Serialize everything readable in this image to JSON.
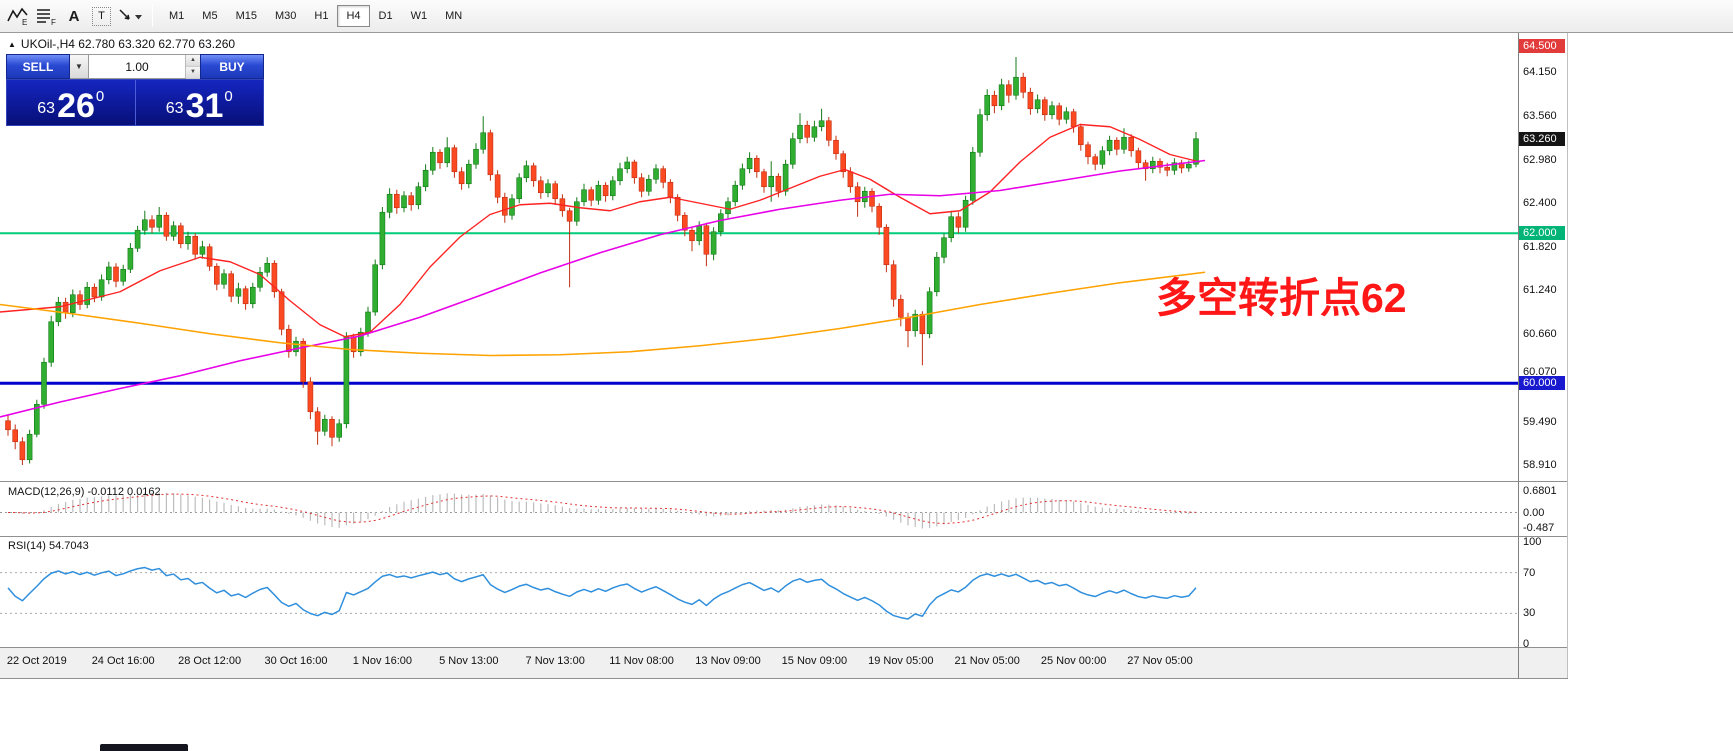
{
  "toolbar": {
    "tools": [
      {
        "id": "chart-template-e",
        "label": "E"
      },
      {
        "id": "chart-template-f",
        "label": "F"
      },
      {
        "id": "text-label-tool",
        "label": "A"
      },
      {
        "id": "text-box-tool",
        "label": "T"
      },
      {
        "id": "drawing-tools",
        "label": ""
      }
    ],
    "timeframes": [
      "M1",
      "M5",
      "M15",
      "M30",
      "H1",
      "H4",
      "D1",
      "W1",
      "MN"
    ],
    "active_timeframe": "H4"
  },
  "symbol_info": {
    "collapse_icon": "▲",
    "text": "UKOil-,H4  62.780 63.320 62.770 63.260"
  },
  "trade_panel": {
    "sell_label": "SELL",
    "buy_label": "BUY",
    "volume": "1.00",
    "bid": {
      "small": "63",
      "big": "26",
      "sup": "0"
    },
    "ask": {
      "small": "63",
      "big": "31",
      "sup": "0"
    }
  },
  "annotation": {
    "text": "多空转折点62",
    "color": "#ff1616"
  },
  "price_axis": {
    "ticks": [
      {
        "label": "64.500",
        "price": 64.5,
        "badge": "red"
      },
      {
        "label": "64.150",
        "price": 64.15
      },
      {
        "label": "63.560",
        "price": 63.56
      },
      {
        "label": "63.260",
        "price": 63.26,
        "badge": "black"
      },
      {
        "label": "62.980",
        "price": 62.98
      },
      {
        "label": "62.400",
        "price": 62.4
      },
      {
        "label": "62.000",
        "price": 62.0,
        "badge": "green"
      },
      {
        "label": "61.820",
        "price": 61.82
      },
      {
        "label": "61.240",
        "price": 61.24
      },
      {
        "label": "60.660",
        "price": 60.66
      },
      {
        "label": "60.070",
        "price": 60.07,
        "dy": -6
      },
      {
        "label": "60.000",
        "price": 60.0,
        "badge": "blue"
      },
      {
        "label": "59.490",
        "price": 59.49
      },
      {
        "label": "58.910",
        "price": 58.91
      }
    ]
  },
  "macd_panel": {
    "label": "MACD(12,26,9) -0.0112 0.0162",
    "axis": [
      {
        "label": "0.6801",
        "value": 0.6801
      },
      {
        "label": "0.00",
        "value": 0
      },
      {
        "label": "-0.487",
        "value": -0.487
      }
    ]
  },
  "rsi_panel": {
    "label": "RSI(14) 54.7043",
    "axis": [
      {
        "label": "100",
        "value": 100
      },
      {
        "label": "70",
        "value": 70
      },
      {
        "label": "30",
        "value": 30
      },
      {
        "label": "0",
        "value": 0
      }
    ],
    "levels": [
      70,
      30
    ]
  },
  "time_axis": [
    {
      "label": "22 Oct 2019",
      "ci": 4
    },
    {
      "label": "24 Oct 16:00",
      "ci": 16
    },
    {
      "label": "28 Oct 12:00",
      "ci": 28
    },
    {
      "label": "30 Oct 16:00",
      "ci": 40
    },
    {
      "label": "1 Nov 16:00",
      "ci": 52
    },
    {
      "label": "5 Nov 13:00",
      "ci": 64
    },
    {
      "label": "7 Nov 13:00",
      "ci": 76
    },
    {
      "label": "11 Nov 08:00",
      "ci": 88
    },
    {
      "label": "13 Nov 09:00",
      "ci": 100
    },
    {
      "label": "15 Nov 09:00",
      "ci": 112
    },
    {
      "label": "19 Nov 05:00",
      "ci": 124
    },
    {
      "label": "21 Nov 05:00",
      "ci": 136
    },
    {
      "label": "25 Nov 00:00",
      "ci": 148
    },
    {
      "label": "27 Nov 05:00",
      "ci": 160
    }
  ],
  "chart_data": {
    "type": "candlestick",
    "symbol": "UKOil-",
    "timeframe": "H4",
    "ylim": [
      58.75,
      64.62
    ],
    "open_first": 59.5,
    "candles": [
      [
        59.58,
        59.3,
        59.38
      ],
      [
        59.45,
        59.12,
        59.22
      ],
      [
        59.28,
        58.91,
        58.98
      ],
      [
        59.38,
        58.93,
        59.32
      ],
      [
        59.78,
        59.28,
        59.72
      ],
      [
        60.34,
        59.66,
        60.28
      ],
      [
        60.9,
        60.22,
        60.82
      ],
      [
        61.15,
        60.76,
        61.08
      ],
      [
        61.14,
        60.86,
        60.94
      ],
      [
        61.25,
        60.88,
        61.18
      ],
      [
        61.24,
        60.98,
        61.05
      ],
      [
        61.35,
        61.0,
        61.28
      ],
      [
        61.33,
        61.08,
        61.15
      ],
      [
        61.45,
        61.1,
        61.38
      ],
      [
        61.62,
        61.32,
        61.55
      ],
      [
        61.6,
        61.28,
        61.36
      ],
      [
        61.58,
        61.3,
        61.52
      ],
      [
        61.87,
        61.47,
        61.8
      ],
      [
        62.1,
        61.75,
        62.04
      ],
      [
        62.3,
        61.98,
        62.18
      ],
      [
        62.24,
        62.0,
        62.08
      ],
      [
        62.35,
        62.02,
        62.24
      ],
      [
        62.28,
        61.9,
        61.96
      ],
      [
        62.16,
        61.9,
        62.1
      ],
      [
        62.14,
        61.8,
        61.86
      ],
      [
        62.02,
        61.78,
        61.96
      ],
      [
        62.0,
        61.65,
        61.72
      ],
      [
        61.9,
        61.66,
        61.82
      ],
      [
        61.86,
        61.5,
        61.56
      ],
      [
        61.6,
        61.24,
        61.32
      ],
      [
        61.52,
        61.26,
        61.46
      ],
      [
        61.5,
        61.08,
        61.16
      ],
      [
        61.34,
        61.06,
        61.26
      ],
      [
        61.3,
        60.98,
        61.06
      ],
      [
        61.34,
        61.0,
        61.28
      ],
      [
        61.55,
        61.22,
        61.48
      ],
      [
        61.68,
        61.42,
        61.6
      ],
      [
        61.64,
        61.14,
        61.22
      ],
      [
        61.26,
        60.64,
        60.72
      ],
      [
        60.78,
        60.34,
        60.42
      ],
      [
        60.62,
        60.36,
        60.56
      ],
      [
        60.6,
        59.94,
        60.02
      ],
      [
        60.08,
        59.52,
        59.62
      ],
      [
        59.68,
        59.18,
        59.36
      ],
      [
        59.58,
        59.3,
        59.52
      ],
      [
        59.56,
        59.16,
        59.28
      ],
      [
        59.52,
        59.22,
        59.46
      ],
      [
        60.68,
        59.4,
        60.62
      ],
      [
        60.66,
        60.34,
        60.42
      ],
      [
        60.74,
        60.36,
        60.68
      ],
      [
        61.02,
        60.62,
        60.95
      ],
      [
        61.65,
        60.9,
        61.58
      ],
      [
        62.35,
        61.52,
        62.28
      ],
      [
        62.6,
        62.2,
        62.52
      ],
      [
        62.58,
        62.26,
        62.34
      ],
      [
        62.56,
        62.28,
        62.5
      ],
      [
        62.55,
        62.3,
        62.38
      ],
      [
        62.68,
        62.32,
        62.62
      ],
      [
        62.92,
        62.56,
        62.84
      ],
      [
        63.15,
        62.78,
        63.08
      ],
      [
        63.12,
        62.86,
        62.94
      ],
      [
        63.28,
        62.88,
        63.14
      ],
      [
        63.18,
        62.74,
        62.82
      ],
      [
        62.88,
        62.58,
        62.66
      ],
      [
        62.98,
        62.6,
        62.92
      ],
      [
        63.2,
        62.86,
        63.12
      ],
      [
        63.56,
        63.06,
        63.34
      ],
      [
        63.38,
        62.7,
        62.78
      ],
      [
        62.84,
        62.4,
        62.48
      ],
      [
        62.54,
        62.14,
        62.24
      ],
      [
        62.52,
        62.18,
        62.46
      ],
      [
        62.8,
        62.4,
        62.74
      ],
      [
        62.97,
        62.68,
        62.9
      ],
      [
        62.94,
        62.62,
        62.7
      ],
      [
        62.76,
        62.46,
        62.54
      ],
      [
        62.72,
        62.48,
        62.66
      ],
      [
        62.7,
        62.38,
        62.46
      ],
      [
        62.52,
        62.22,
        62.3
      ],
      [
        62.34,
        61.28,
        62.16
      ],
      [
        62.48,
        62.1,
        62.42
      ],
      [
        62.66,
        62.36,
        62.58
      ],
      [
        62.62,
        62.36,
        62.44
      ],
      [
        62.7,
        62.38,
        62.64
      ],
      [
        62.68,
        62.42,
        62.5
      ],
      [
        62.76,
        62.44,
        62.7
      ],
      [
        62.94,
        62.64,
        62.86
      ],
      [
        63.02,
        62.8,
        62.95
      ],
      [
        62.98,
        62.66,
        62.74
      ],
      [
        62.8,
        62.48,
        62.56
      ],
      [
        62.78,
        62.5,
        62.72
      ],
      [
        62.92,
        62.66,
        62.86
      ],
      [
        62.9,
        62.6,
        62.68
      ],
      [
        62.72,
        62.4,
        62.48
      ],
      [
        62.52,
        62.16,
        62.24
      ],
      [
        62.28,
        61.96,
        62.04
      ],
      [
        62.08,
        61.76,
        61.9
      ],
      [
        62.16,
        61.84,
        62.1
      ],
      [
        62.14,
        61.56,
        61.72
      ],
      [
        62.08,
        61.64,
        62.02
      ],
      [
        62.32,
        61.96,
        62.26
      ],
      [
        62.48,
        62.2,
        62.42
      ],
      [
        62.7,
        62.36,
        62.64
      ],
      [
        62.93,
        62.58,
        62.86
      ],
      [
        63.08,
        62.8,
        63.0
      ],
      [
        63.04,
        62.74,
        62.82
      ],
      [
        62.86,
        62.54,
        62.62
      ],
      [
        62.96,
        62.42,
        62.76
      ],
      [
        62.8,
        62.48,
        62.56
      ],
      [
        62.98,
        62.5,
        62.92
      ],
      [
        63.34,
        62.86,
        63.26
      ],
      [
        63.6,
        63.2,
        63.44
      ],
      [
        63.5,
        63.2,
        63.28
      ],
      [
        63.5,
        63.22,
        63.42
      ],
      [
        63.66,
        63.36,
        63.5
      ],
      [
        63.55,
        63.16,
        63.24
      ],
      [
        63.3,
        62.98,
        63.06
      ],
      [
        63.1,
        62.74,
        62.82
      ],
      [
        62.88,
        62.54,
        62.62
      ],
      [
        62.68,
        62.22,
        62.42
      ],
      [
        62.62,
        62.34,
        62.56
      ],
      [
        62.6,
        62.28,
        62.36
      ],
      [
        62.4,
        61.98,
        62.08
      ],
      [
        62.12,
        61.48,
        61.58
      ],
      [
        61.64,
        61.02,
        61.12
      ],
      [
        61.18,
        60.76,
        60.88
      ],
      [
        60.94,
        60.48,
        60.7
      ],
      [
        60.98,
        60.62,
        60.92
      ],
      [
        60.96,
        60.24,
        60.66
      ],
      [
        61.28,
        60.6,
        61.22
      ],
      [
        61.75,
        61.16,
        61.68
      ],
      [
        62.0,
        61.6,
        61.94
      ],
      [
        62.3,
        61.88,
        62.22
      ],
      [
        62.28,
        62.0,
        62.08
      ],
      [
        62.5,
        62.02,
        62.44
      ],
      [
        63.15,
        62.38,
        63.08
      ],
      [
        63.66,
        63.02,
        63.58
      ],
      [
        63.92,
        63.5,
        63.84
      ],
      [
        63.9,
        63.6,
        63.7
      ],
      [
        64.06,
        63.64,
        63.98
      ],
      [
        64.04,
        63.74,
        63.84
      ],
      [
        64.35,
        63.78,
        64.08
      ],
      [
        64.14,
        63.8,
        63.88
      ],
      [
        63.94,
        63.58,
        63.66
      ],
      [
        63.85,
        63.6,
        63.78
      ],
      [
        63.82,
        63.5,
        63.58
      ],
      [
        63.76,
        63.52,
        63.7
      ],
      [
        63.74,
        63.44,
        63.52
      ],
      [
        63.68,
        63.46,
        63.62
      ],
      [
        63.66,
        63.34,
        63.42
      ],
      [
        63.46,
        63.1,
        63.18
      ],
      [
        63.22,
        62.92,
        63.02
      ],
      [
        63.06,
        62.84,
        62.92
      ],
      [
        63.16,
        62.86,
        63.1
      ],
      [
        63.3,
        63.04,
        63.24
      ],
      [
        63.28,
        63.04,
        63.12
      ],
      [
        63.4,
        63.06,
        63.28
      ],
      [
        63.32,
        63.02,
        63.1
      ],
      [
        63.14,
        62.86,
        62.94
      ],
      [
        62.98,
        62.7,
        62.86
      ],
      [
        63.02,
        62.8,
        62.96
      ],
      [
        63.0,
        62.8,
        62.88
      ],
      [
        62.94,
        62.76,
        62.84
      ],
      [
        63.0,
        62.78,
        62.94
      ],
      [
        62.98,
        62.8,
        62.87
      ],
      [
        62.97,
        62.82,
        62.92
      ],
      [
        63.35,
        62.88,
        63.26
      ]
    ],
    "h_lines": [
      {
        "price": 62.0,
        "color": "#00cc7a",
        "width": 2
      },
      {
        "price": 60.0,
        "color": "#0000cc",
        "width": 3
      }
    ],
    "overlays": [
      {
        "name": "ma-red",
        "color": "#ff2222",
        "width": 1.4,
        "points": [
          [
            0,
            60.95
          ],
          [
            60,
            61.02
          ],
          [
            120,
            61.22
          ],
          [
            160,
            61.5
          ],
          [
            200,
            61.68
          ],
          [
            230,
            61.62
          ],
          [
            260,
            61.45
          ],
          [
            290,
            61.1
          ],
          [
            320,
            60.78
          ],
          [
            345,
            60.62
          ],
          [
            370,
            60.68
          ],
          [
            400,
            61.05
          ],
          [
            430,
            61.55
          ],
          [
            460,
            61.95
          ],
          [
            490,
            62.25
          ],
          [
            520,
            62.38
          ],
          [
            550,
            62.4
          ],
          [
            580,
            62.34
          ],
          [
            610,
            62.3
          ],
          [
            640,
            62.42
          ],
          [
            670,
            62.48
          ],
          [
            700,
            62.4
          ],
          [
            730,
            62.32
          ],
          [
            760,
            62.44
          ],
          [
            790,
            62.6
          ],
          [
            820,
            62.76
          ],
          [
            845,
            62.85
          ],
          [
            870,
            62.72
          ],
          [
            900,
            62.48
          ],
          [
            930,
            62.26
          ],
          [
            960,
            62.3
          ],
          [
            990,
            62.55
          ],
          [
            1020,
            62.95
          ],
          [
            1050,
            63.28
          ],
          [
            1080,
            63.45
          ],
          [
            1110,
            63.42
          ],
          [
            1140,
            63.25
          ],
          [
            1170,
            63.05
          ],
          [
            1200,
            62.95
          ]
        ]
      },
      {
        "name": "ma-magenta",
        "color": "#e800e8",
        "width": 1.6,
        "points": [
          [
            0,
            59.55
          ],
          [
            60,
            59.75
          ],
          [
            120,
            59.93
          ],
          [
            180,
            60.1
          ],
          [
            240,
            60.3
          ],
          [
            300,
            60.47
          ],
          [
            360,
            60.63
          ],
          [
            420,
            60.88
          ],
          [
            480,
            61.17
          ],
          [
            540,
            61.47
          ],
          [
            600,
            61.74
          ],
          [
            660,
            61.98
          ],
          [
            720,
            62.17
          ],
          [
            780,
            62.32
          ],
          [
            840,
            62.44
          ],
          [
            890,
            62.52
          ],
          [
            940,
            62.5
          ],
          [
            1000,
            62.57
          ],
          [
            1060,
            62.7
          ],
          [
            1120,
            62.83
          ],
          [
            1205,
            62.97
          ]
        ]
      },
      {
        "name": "ma-orange",
        "color": "#ffa200",
        "width": 1.6,
        "points": [
          [
            0,
            61.05
          ],
          [
            70,
            60.93
          ],
          [
            140,
            60.8
          ],
          [
            210,
            60.66
          ],
          [
            280,
            60.54
          ],
          [
            350,
            60.45
          ],
          [
            420,
            60.4
          ],
          [
            490,
            60.37
          ],
          [
            560,
            60.38
          ],
          [
            630,
            60.42
          ],
          [
            700,
            60.5
          ],
          [
            770,
            60.6
          ],
          [
            840,
            60.73
          ],
          [
            910,
            60.88
          ],
          [
            980,
            61.05
          ],
          [
            1050,
            61.2
          ],
          [
            1120,
            61.34
          ],
          [
            1205,
            61.48
          ]
        ]
      }
    ],
    "colors": {
      "up": "#2fae31",
      "up_edge": "#157a18",
      "down": "#fb4a22",
      "down_edge": "#c22f12",
      "macd_hist": "#bcbcbc",
      "macd_signal": "#e03131",
      "rsi": "#2f8fdd"
    }
  }
}
